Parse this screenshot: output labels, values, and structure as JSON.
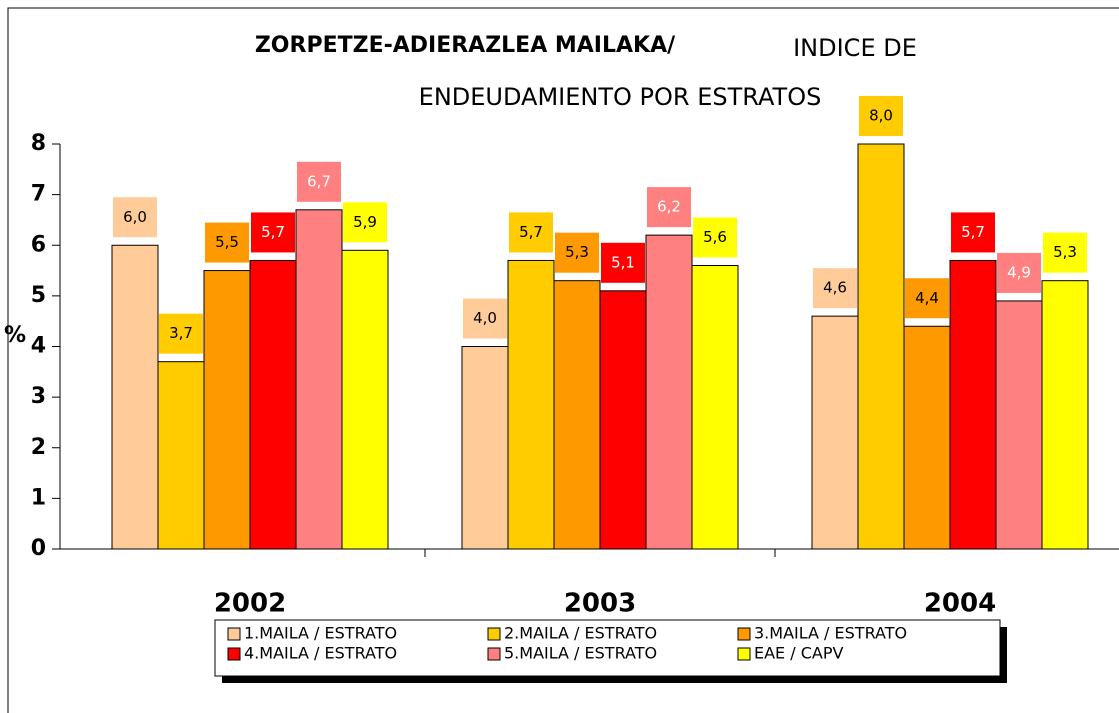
{
  "chart_data": {
    "type": "bar",
    "title": "ZORPETZE-ADIERAZLEA MAILAKA/",
    "subtitle": [
      "INDICE DE",
      "ENDEUDAMIENTO POR ESTRATOS"
    ],
    "y_label": "%",
    "categories": [
      "2002",
      "2003",
      "2004"
    ],
    "series": [
      {
        "name": "1.MAILA / ESTRATO",
        "color": "#ffcc99",
        "values": [
          6.0,
          4.0,
          4.6
        ],
        "value_labels": [
          "6,0",
          "4,0",
          "4,6"
        ]
      },
      {
        "name": "2.MAILA / ESTRATO",
        "color": "#ffcc00",
        "values": [
          3.7,
          5.7,
          8.0
        ],
        "value_labels": [
          "3,7",
          "5,7",
          "8,0"
        ]
      },
      {
        "name": "3.MAILA / ESTRATO",
        "color": "#ff9900",
        "values": [
          5.5,
          5.3,
          4.4
        ],
        "value_labels": [
          "5,5",
          "5,3",
          "4,4"
        ]
      },
      {
        "name": "4.MAILA / ESTRATO",
        "color": "#ff0000",
        "values": [
          5.7,
          5.1,
          5.7
        ],
        "value_labels": [
          "5,7",
          "5,1",
          "5,7"
        ]
      },
      {
        "name": "5.MAILA / ESTRATO",
        "color": "#ff8080",
        "values": [
          6.7,
          6.2,
          4.9
        ],
        "value_labels": [
          "6,7",
          "6,2",
          "4,9"
        ]
      },
      {
        "name": "EAE / CAPV",
        "color": "#ffff00",
        "values": [
          5.9,
          5.6,
          5.3
        ],
        "value_labels": [
          "5,9",
          "5,6",
          "5,3"
        ]
      }
    ],
    "ylim": [
      0,
      8
    ],
    "yticks": [
      0,
      1,
      2,
      3,
      4,
      5,
      6,
      7,
      8
    ],
    "grid": false
  }
}
